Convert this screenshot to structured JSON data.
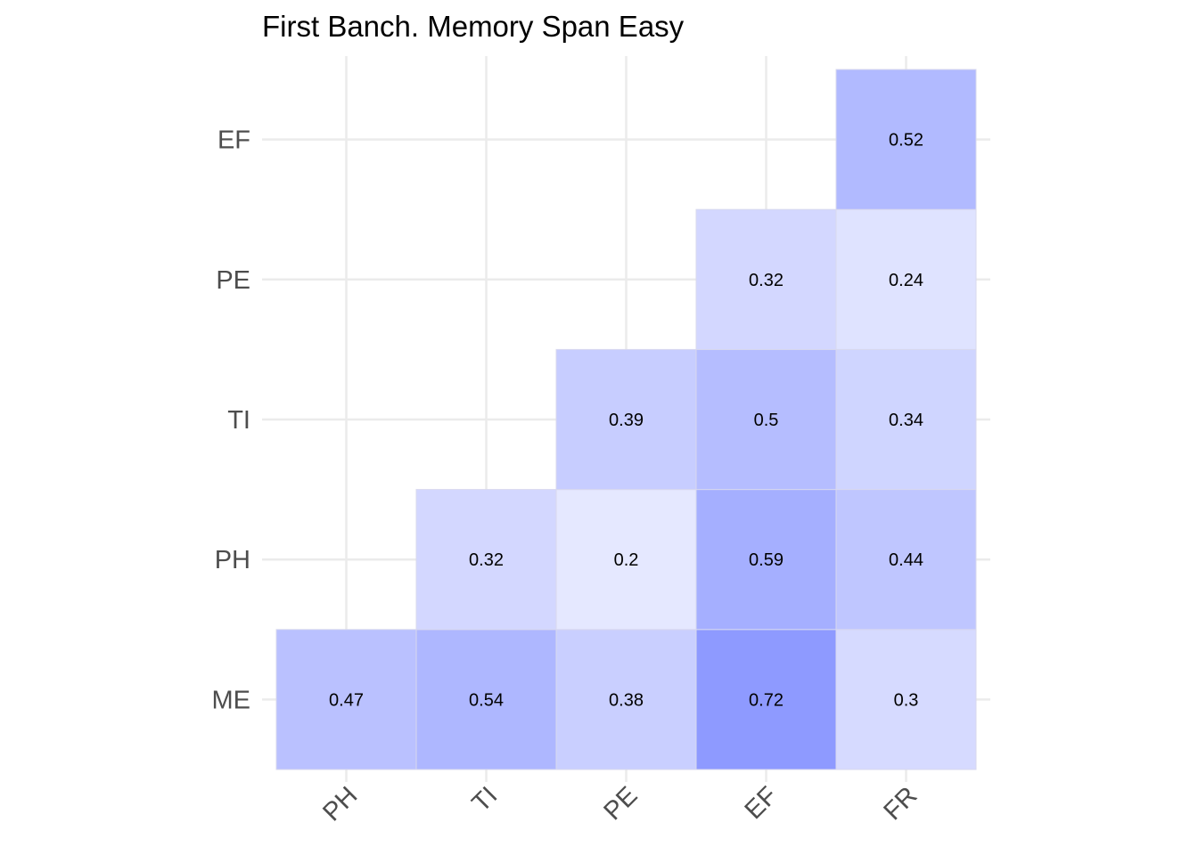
{
  "chart_data": {
    "type": "heatmap",
    "title": "First Banch. Memory Span Easy",
    "xlabel": "",
    "ylabel": "",
    "x_categories": [
      "PH",
      "TI",
      "PE",
      "EF",
      "FR"
    ],
    "y_categories": [
      "ME",
      "PH",
      "TI",
      "PE",
      "EF"
    ],
    "cells": [
      {
        "x": "PH",
        "y": "ME",
        "value": 0.47,
        "label": "0.47"
      },
      {
        "x": "TI",
        "y": "ME",
        "value": 0.54,
        "label": "0.54"
      },
      {
        "x": "PE",
        "y": "ME",
        "value": 0.38,
        "label": "0.38"
      },
      {
        "x": "EF",
        "y": "ME",
        "value": 0.72,
        "label": "0.72"
      },
      {
        "x": "FR",
        "y": "ME",
        "value": 0.3,
        "label": "0.3"
      },
      {
        "x": "TI",
        "y": "PH",
        "value": 0.32,
        "label": "0.32"
      },
      {
        "x": "PE",
        "y": "PH",
        "value": 0.2,
        "label": "0.2"
      },
      {
        "x": "EF",
        "y": "PH",
        "value": 0.59,
        "label": "0.59"
      },
      {
        "x": "FR",
        "y": "PH",
        "value": 0.44,
        "label": "0.44"
      },
      {
        "x": "PE",
        "y": "TI",
        "value": 0.39,
        "label": "0.39"
      },
      {
        "x": "EF",
        "y": "TI",
        "value": 0.5,
        "label": "0.5"
      },
      {
        "x": "FR",
        "y": "TI",
        "value": 0.34,
        "label": "0.34"
      },
      {
        "x": "EF",
        "y": "PE",
        "value": 0.32,
        "label": "0.32"
      },
      {
        "x": "FR",
        "y": "PE",
        "value": 0.24,
        "label": "0.24"
      },
      {
        "x": "FR",
        "y": "EF",
        "value": 0.52,
        "label": "0.52"
      }
    ],
    "color_scale": {
      "low": "#ffffff",
      "high": "#1a33ff",
      "domain": [
        0,
        1
      ]
    },
    "grid": true,
    "legend": "none"
  }
}
